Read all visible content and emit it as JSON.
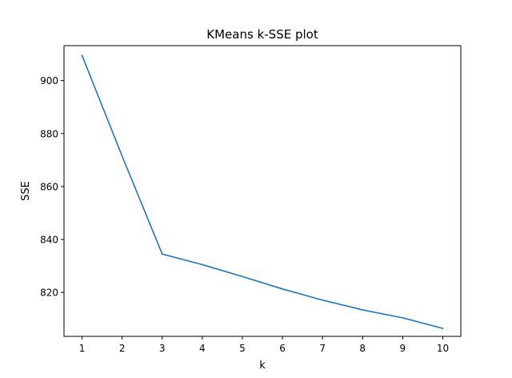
{
  "chart_data": {
    "type": "line",
    "title": "KMeans k-SSE plot",
    "xlabel": "k",
    "ylabel": "SSE",
    "xlim": [
      0.55,
      10.45
    ],
    "ylim": [
      803.4,
      913.2
    ],
    "x_ticks": [
      "1",
      "2",
      "3",
      "4",
      "5",
      "6",
      "7",
      "8",
      "9",
      "10"
    ],
    "y_ticks": [
      "820",
      "840",
      "860",
      "880",
      "900"
    ],
    "grid": false,
    "legend": "none",
    "series": [
      {
        "color": "#1f77b4",
        "points": [
          {
            "x": 1,
            "y": 909.5
          },
          {
            "x": 2,
            "y": 871.5
          },
          {
            "x": 3,
            "y": 834.5
          },
          {
            "x": 4,
            "y": 830.5
          },
          {
            "x": 5,
            "y": 826.0
          },
          {
            "x": 6,
            "y": 821.3
          },
          {
            "x": 7,
            "y": 817.1
          },
          {
            "x": 8,
            "y": 813.4
          },
          {
            "x": 9,
            "y": 810.4
          },
          {
            "x": 10,
            "y": 806.4
          }
        ]
      }
    ]
  }
}
